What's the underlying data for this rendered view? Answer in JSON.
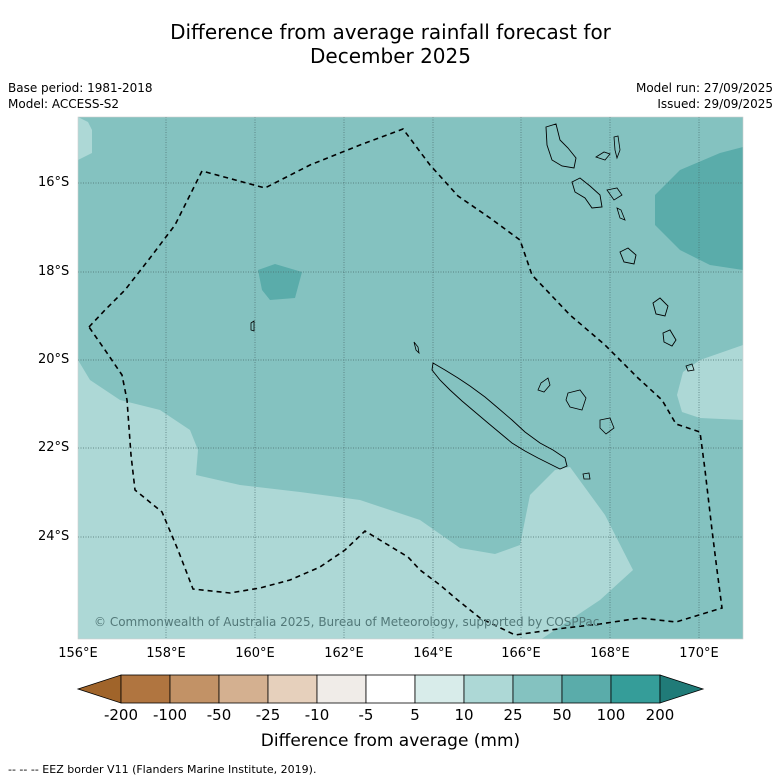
{
  "title_line1": "Difference from average rainfall forecast for",
  "title_line2": "December 2025",
  "base_period": "Base period: 1981-2018",
  "model": "Model: ACCESS-S2",
  "model_run": "Model run: 27/09/2025",
  "issued": "Issued: 29/09/2025",
  "lat_labels": [
    "16°S",
    "18°S",
    "20°S",
    "22°S",
    "24°S"
  ],
  "lon_labels": [
    "156°E",
    "158°E",
    "160°E",
    "162°E",
    "164°E",
    "166°E",
    "168°E",
    "170°E"
  ],
  "copyright": "© Commonwealth of Australia 2025, Bureau of Meteorology, supported by COSPPac",
  "colorbar": {
    "labels": [
      "-200",
      "-100",
      "-50",
      "-25",
      "-10",
      "-5",
      "5",
      "10",
      "25",
      "50",
      "100",
      "200"
    ],
    "colors": [
      "#a0642a",
      "#b07540",
      "#c29266",
      "#d4b090",
      "#e6d0bc",
      "#f0ece8",
      "#ffffff",
      "#d8ecea",
      "#add8d6",
      "#84c2c0",
      "#5aacaa",
      "#359d99",
      "#207b78"
    ],
    "title": "Difference from average (mm)"
  },
  "legend_note": "--  --  -- EEZ border V11 (Flanders Marine Institute, 2019)."
}
